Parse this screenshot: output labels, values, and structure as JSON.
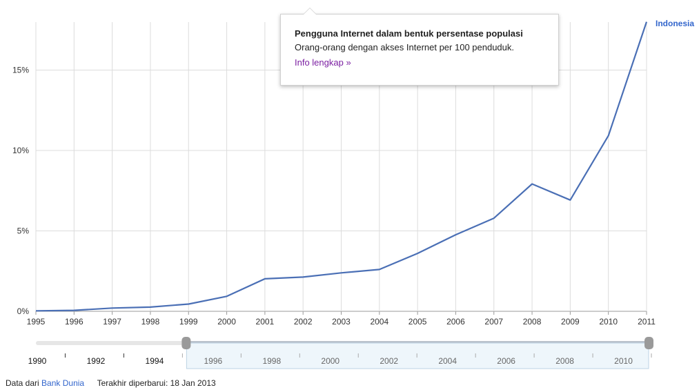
{
  "chart_data": {
    "type": "line",
    "x": [
      "1995",
      "1996",
      "1997",
      "1998",
      "1999",
      "2000",
      "2001",
      "2002",
      "2003",
      "2004",
      "2005",
      "2006",
      "2007",
      "2008",
      "2009",
      "2010",
      "2011"
    ],
    "series": [
      {
        "name": "Indonesia",
        "color": "#4a6fb5",
        "values": [
          0.03,
          0.06,
          0.2,
          0.26,
          0.45,
          0.93,
          2.02,
          2.13,
          2.39,
          2.6,
          3.6,
          4.76,
          5.79,
          7.92,
          6.92,
          10.92,
          18.0
        ]
      }
    ],
    "ylim": [
      0,
      18.5
    ],
    "yticks": [
      0,
      5,
      10,
      15
    ],
    "ytick_labels": [
      "0%",
      "5%",
      "10%",
      "15%"
    ],
    "grid": true,
    "title": "",
    "xlabel": "",
    "ylabel": ""
  },
  "tooltip": {
    "title": "Pengguna Internet dalam bentuk persentase populasi",
    "description": "Orang-orang dengan akses Internet per 100 penduduk.",
    "link": "Info lengkap »"
  },
  "timeline": {
    "labels": [
      "1990",
      "1992",
      "1994",
      "1996",
      "1998",
      "2000",
      "2002",
      "2004",
      "2006",
      "2008",
      "2010"
    ],
    "range_start": 1995,
    "range_end": 2011,
    "domain": [
      1990,
      2011
    ]
  },
  "footer": {
    "source_prefix": "Data dari",
    "source_link": "Bank Dunia",
    "updated": "Terakhir diperbarui: 18 Jan 2013"
  }
}
